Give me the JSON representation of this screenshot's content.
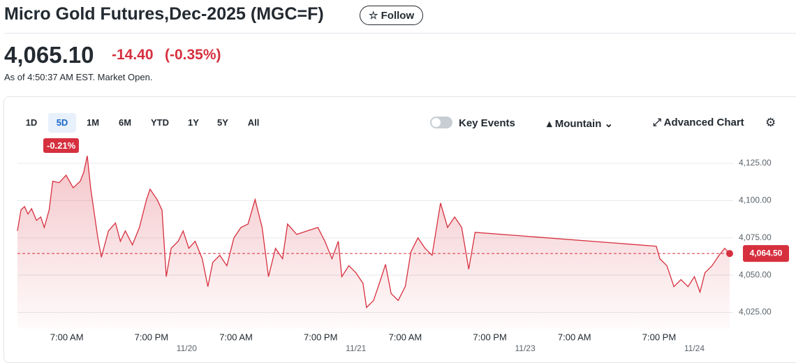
{
  "header": {
    "title": "Micro Gold Futures,Dec-2025 (MGC=F)",
    "follow": "Follow",
    "price": "4,065.10",
    "change": "-14.40",
    "change_percent": "(-0.35%)",
    "as_of": "As of 4:50:37 AM EST. Market Open."
  },
  "controls": {
    "ranges": [
      "1D",
      "5D",
      "1M",
      "6M",
      "YTD",
      "1Y",
      "5Y",
      "All"
    ],
    "selected_range": "5D",
    "range_change": "-0.21%",
    "key_events": "Key Events",
    "chart_style": "Mountain",
    "advanced_chart": "Advanced Chart"
  },
  "chart_data": {
    "type": "line",
    "color": "#d6303f",
    "x": [
      0,
      0.5,
      1,
      1.5,
      2,
      2.7,
      3.3,
      3.8,
      4.5,
      5,
      5.9,
      6.9,
      7.9,
      8.9,
      9.4,
      9.9,
      10.4,
      11.4,
      11.9,
      12.9,
      13.9,
      14.6,
      15.3,
      16.3,
      17.3,
      18.3,
      18.8,
      19.8,
      20.5,
      21.1,
      21.8,
      22.8,
      23.5,
      24.3,
      25.2,
      26.2,
      27,
      27.7,
      28.7,
      29.7,
      30.7,
      31.7,
      32.7,
      33.7,
      34.7,
      35.6,
      36.6,
      37.6,
      38.3,
      39.6,
      41.1,
      42.6,
      43.6,
      44.6,
      45.5,
      46,
      47,
      48,
      49,
      49.5,
      50.5,
      51.5,
      52.2,
      53,
      54,
      55,
      55.8,
      56.8,
      57.8,
      58.8,
      60,
      61,
      62,
      63,
      64,
      64.9,
      90.6,
      91.1,
      92.1,
      93.1,
      94.1,
      95.1,
      96,
      96.8,
      97.5,
      98.5,
      99.5,
      100.3,
      101
    ],
    "values": [
      4079.7,
      4093.7,
      4096,
      4091,
      4094.6,
      4086.7,
      4089,
      4082,
      4093.7,
      4113,
      4112,
      4117,
      4108.6,
      4113,
      4119,
      4130,
      4107.7,
      4075,
      4062,
      4079.7,
      4085,
      4072.7,
      4079.7,
      4070.3,
      4082,
      4100.7,
      4107.7,
      4100.7,
      4093.7,
      4049,
      4068,
      4072.7,
      4079.7,
      4068,
      4072.7,
      4061,
      4042.3,
      4058.6,
      4063.3,
      4056.3,
      4075,
      4082,
      4084.3,
      4100.7,
      4082,
      4049,
      4068,
      4061,
      4084.3,
      4077.3,
      4079.7,
      4082,
      4072.7,
      4061,
      4072.7,
      4049,
      4056.3,
      4051.6,
      4044.6,
      4028.3,
      4033,
      4047,
      4057.2,
      4037.6,
      4033,
      4042.3,
      4065.6,
      4075,
      4068,
      4063.3,
      4098.4,
      4082,
      4089,
      4082,
      4054,
      4078.7,
      4069.4,
      4061,
      4056.3,
      4042.3,
      4047,
      4042.3,
      4049,
      4038.6,
      4051.6,
      4056.3,
      4063.3,
      4068,
      4064.5
    ],
    "xlim": [
      0,
      101.5
    ],
    "ylim": [
      4014,
      4132
    ],
    "xticks": [
      {
        "value": 7,
        "label": "7:00 AM"
      },
      {
        "value": 19,
        "label": "7:00 PM"
      },
      {
        "value": 31,
        "label": "7:00 AM"
      },
      {
        "value": 43,
        "label": "7:00 PM"
      },
      {
        "value": 55,
        "label": "7:00 AM"
      },
      {
        "value": 67,
        "label": "7:00 PM"
      },
      {
        "value": 79,
        "label": "7:00 AM"
      },
      {
        "value": 91,
        "label": "7:00 PM"
      }
    ],
    "date_ticks": [
      {
        "value": 24,
        "label": "11/20"
      },
      {
        "value": 48,
        "label": "11/21"
      },
      {
        "value": 72,
        "label": "11/23"
      },
      {
        "value": 96,
        "label": "11/24"
      }
    ],
    "yticks": [
      {
        "value": 4025,
        "label": "4,025.00"
      },
      {
        "value": 4050,
        "label": "4,050.00"
      },
      {
        "value": 4075,
        "label": "4,075.00"
      },
      {
        "value": 4100,
        "label": "4,100.00"
      },
      {
        "value": 4125,
        "label": "4,125.00"
      }
    ],
    "last_price": {
      "value": 4064.5,
      "label": "4,064.50"
    },
    "grid": true
  }
}
